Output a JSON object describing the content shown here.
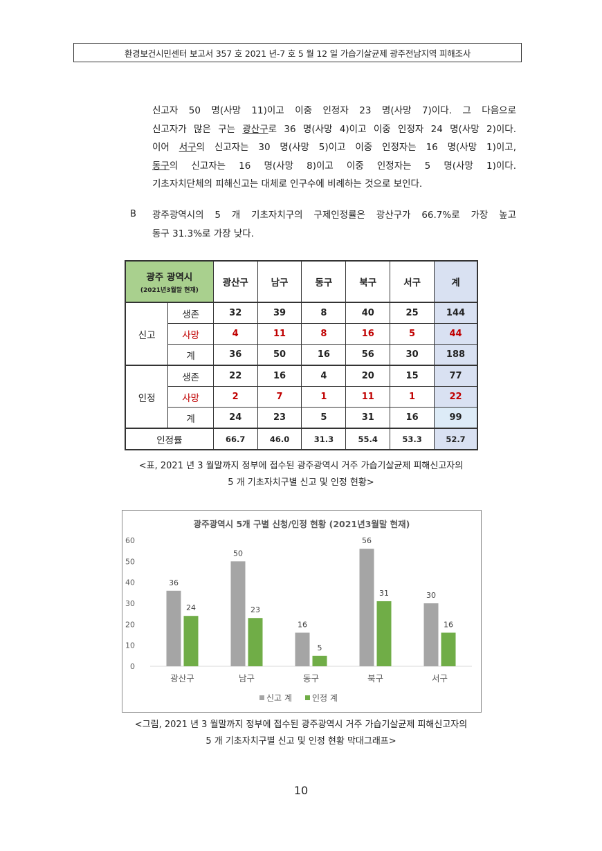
{
  "header": "환경보건시민센터 보고서 357 호 2021 년-7 호 5 월 12 일 가습기살균제 광주전남지역 피해조사",
  "paragraph1": {
    "l1": "신고자 50 명(사망 11)이고 이중 인정자 23 명(사망 7)이다. 그 다음으로",
    "l2a": "신고자가 많은 구는 ",
    "l2u": "광산구",
    "l2b": "로 36 명(사망 4)이고 이중 인정자 24 명(사망 2)이다.",
    "l3a": "이어 ",
    "l3u": "서구",
    "l3b": "의 신고자는 30 명(사망 5)이고 이중 인정자는 16 명(사망 1)이고,",
    "l4u": "동구",
    "l4b": "의 신고자는 16 명(사망 8)이고 이중 인정자는 5 명(사망 1)이다.",
    "l5": "기초자치단체의 피해신고는 대체로 인구수에 비례하는 것으로 보인다."
  },
  "bullet": {
    "marker": "B",
    "l1": "광주광역시의 5 개 기초자치구의 구제인정률은 광산구가 66.7%로 가장 높고",
    "l2": "동구 31.3%로 가장 낮다."
  },
  "table": {
    "corner_title": "광주 광역시",
    "corner_sub": "(2021년3월말 현재)",
    "columns": [
      "광산구",
      "남구",
      "동구",
      "북구",
      "서구",
      "계"
    ],
    "group1": "신고",
    "group2": "인정",
    "row_labels": [
      "생존",
      "사망",
      "계"
    ],
    "report": [
      [
        "32",
        "39",
        "8",
        "40",
        "25",
        "144"
      ],
      [
        "4",
        "11",
        "8",
        "16",
        "5",
        "44"
      ],
      [
        "36",
        "50",
        "16",
        "56",
        "30",
        "188"
      ]
    ],
    "approved": [
      [
        "22",
        "16",
        "4",
        "20",
        "15",
        "77"
      ],
      [
        "2",
        "7",
        "1",
        "11",
        "1",
        "22"
      ],
      [
        "24",
        "23",
        "5",
        "31",
        "16",
        "99"
      ]
    ],
    "rate_label": "인정률",
    "rate": [
      "66.7",
      "46.0",
      "31.3",
      "55.4",
      "53.3",
      "52.7"
    ]
  },
  "table_caption": {
    "l1": "<표, 2021 년 3 월말까지 정부에 접수된 광주광역시 거주 가습기살균제 피해신고자의",
    "l2": "5 개 기초자치구별 신고 및 인정 현황>"
  },
  "chart_data": {
    "type": "bar",
    "title": "광주광역시 5개 구별 신청/인정 현황 (2021년3월말 현재)",
    "categories": [
      "광산구",
      "남구",
      "동구",
      "북구",
      "서구"
    ],
    "series": [
      {
        "name": "신고 계",
        "values": [
          36,
          50,
          16,
          56,
          30
        ],
        "color": "#a5a5a5"
      },
      {
        "name": "인정 계",
        "values": [
          24,
          23,
          5,
          31,
          16
        ],
        "color": "#70ad47"
      }
    ],
    "ylim": [
      0,
      60
    ],
    "yticks": [
      0,
      10,
      20,
      30,
      40,
      50,
      60
    ],
    "legend": "bottom",
    "grid": false
  },
  "chart_caption": {
    "l1": "<그림, 2021 년 3 월말까지 정부에 접수된 광주광역시 거주 가습기살균제 피해신고자의",
    "l2": "5 개 기초자치구별 신고 및 인정 현황 막대그래프>"
  },
  "page_number": "10"
}
